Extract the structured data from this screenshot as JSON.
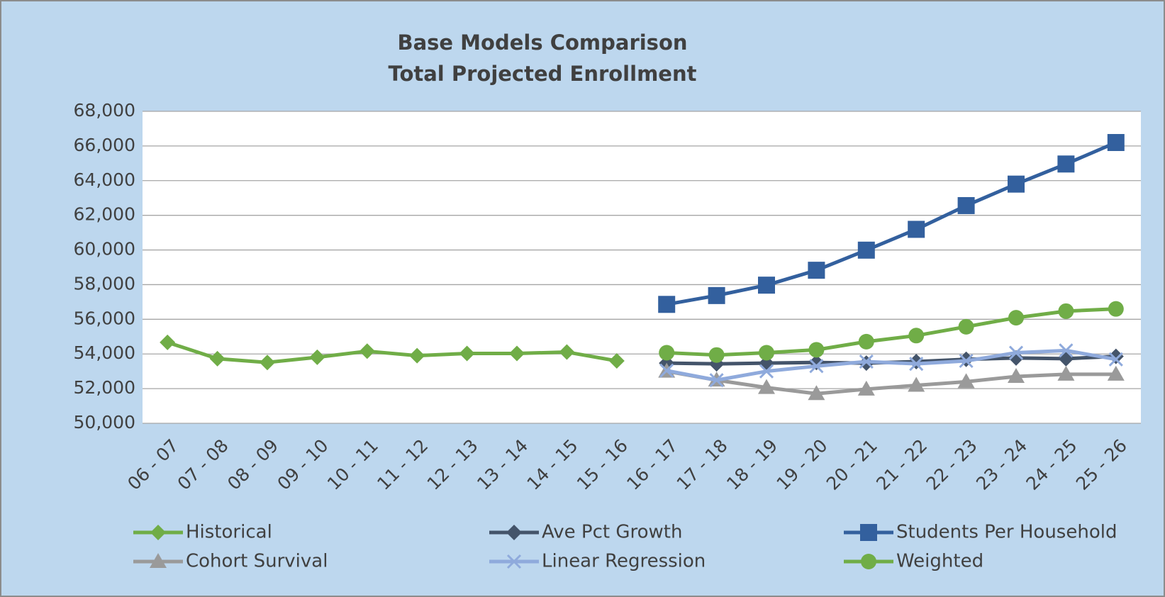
{
  "chart_data": {
    "type": "line",
    "title": "Base Models Comparison",
    "subtitle": "Total Projected Enrollment",
    "categories": [
      "06 - 07",
      "07 - 08",
      "08 - 09",
      "09 - 10",
      "10 - 11",
      "11 - 12",
      "12 - 13",
      "13 - 14",
      "14 - 15",
      "15 - 16",
      "16 - 17",
      "17 - 18",
      "18 - 19",
      "19 - 20",
      "20 - 21",
      "21 - 22",
      "22 - 23",
      "23 - 24",
      "24 - 25",
      "25 - 26"
    ],
    "series": [
      {
        "name": "Historical",
        "color": "#70ad47",
        "marker": "diamond",
        "values": [
          54670,
          53730,
          53510,
          53810,
          54160,
          53900,
          54030,
          54030,
          54110,
          53600,
          null,
          null,
          null,
          null,
          null,
          null,
          null,
          null,
          null,
          null
        ]
      },
      {
        "name": "Ave Pct Growth",
        "color": "#44546a",
        "marker": "diamond",
        "values": [
          null,
          null,
          null,
          null,
          null,
          null,
          null,
          null,
          null,
          null,
          53470,
          53430,
          53470,
          53510,
          53470,
          53560,
          53690,
          53770,
          53730,
          53860
        ]
      },
      {
        "name": "Students Per Household",
        "color": "#33609e",
        "marker": "square",
        "values": [
          null,
          null,
          null,
          null,
          null,
          null,
          null,
          null,
          null,
          null,
          56860,
          57370,
          57970,
          58830,
          59990,
          61190,
          62560,
          63800,
          64960,
          66200
        ]
      },
      {
        "name": "Cohort Survival",
        "color": "#9a9a9a",
        "marker": "triangle",
        "values": [
          null,
          null,
          null,
          null,
          null,
          null,
          null,
          null,
          null,
          null,
          53000,
          52490,
          52060,
          51710,
          51970,
          52190,
          52400,
          52700,
          52830,
          52830
        ]
      },
      {
        "name": "Linear Regression",
        "color": "#8faadc",
        "marker": "x",
        "values": [
          null,
          null,
          null,
          null,
          null,
          null,
          null,
          null,
          null,
          null,
          53040,
          52490,
          53000,
          53300,
          53560,
          53430,
          53600,
          54070,
          54200,
          53690
        ]
      },
      {
        "name": "Weighted",
        "color": "#70ad47",
        "marker": "circle",
        "values": [
          null,
          null,
          null,
          null,
          null,
          null,
          null,
          null,
          null,
          null,
          54070,
          53940,
          54070,
          54240,
          54710,
          55060,
          55570,
          56090,
          56470,
          56600
        ]
      }
    ],
    "ylim": [
      50000,
      68000
    ],
    "yticks": [
      {
        "value": 50000,
        "label": "50,000"
      },
      {
        "value": 52000,
        "label": "52,000"
      },
      {
        "value": 54000,
        "label": "54,000"
      },
      {
        "value": 56000,
        "label": "56,000"
      },
      {
        "value": 58000,
        "label": "58,000"
      },
      {
        "value": 60000,
        "label": "60,000"
      },
      {
        "value": 62000,
        "label": "62,000"
      },
      {
        "value": 64000,
        "label": "64,000"
      },
      {
        "value": 66000,
        "label": "66,000"
      },
      {
        "value": 68000,
        "label": "68,000"
      }
    ],
    "grid": true,
    "legend": "bottom"
  }
}
